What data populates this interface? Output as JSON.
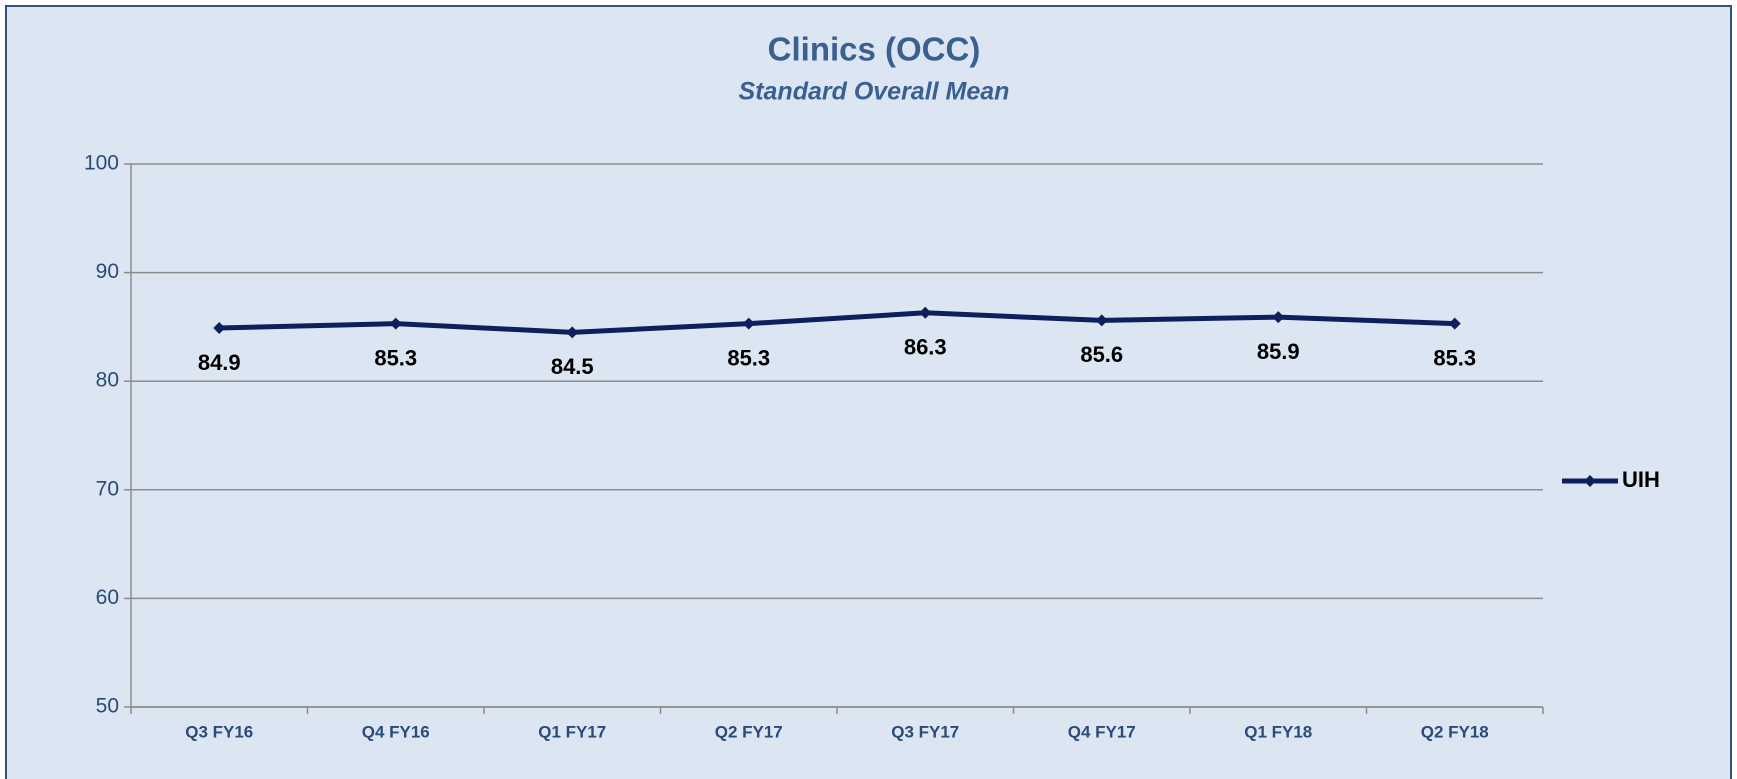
{
  "chart_data": {
    "type": "line",
    "title": "Clinics (OCC)",
    "subtitle": "Standard Overall Mean",
    "categories": [
      "Q3 FY16",
      "Q4 FY16",
      "Q1 FY17",
      "Q2 FY17",
      "Q3 FY17",
      "Q4 FY17",
      "Q1 FY18",
      "Q2 FY18"
    ],
    "series": [
      {
        "name": "UIH",
        "color": "#0d1f5c",
        "values": [
          84.9,
          85.3,
          84.5,
          85.3,
          86.3,
          85.6,
          85.9,
          85.3
        ]
      }
    ],
    "ylim": [
      50,
      100
    ],
    "yticks": [
      50,
      60,
      70,
      80,
      90,
      100
    ],
    "grid": true,
    "legend": "right"
  }
}
